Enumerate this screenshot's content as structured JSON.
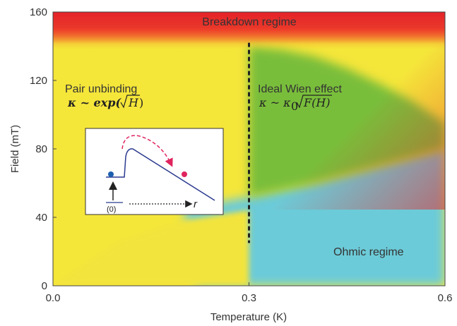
{
  "chart_data": {
    "type": "area",
    "title": "",
    "xlabel": "Temperature (K)",
    "ylabel": "Field (mT)",
    "xlim": [
      0.0,
      0.6
    ],
    "ylim": [
      0,
      160
    ],
    "x_ticks": [
      "0.0",
      "0.3",
      "0.6"
    ],
    "y_ticks": [
      "0",
      "40",
      "80",
      "120",
      "160"
    ],
    "grid": false,
    "regions": [
      {
        "name": "Breakdown regime",
        "color": "#e8262b"
      },
      {
        "name": "Pair unbinding",
        "color": "#f5e63a"
      },
      {
        "name": "Ideal Wien effect",
        "color": "#7bbf3a"
      },
      {
        "name": "Ohmic regime",
        "color": "#6ccbd8"
      }
    ],
    "dashed_line": {
      "x": 0.3,
      "y_range": [
        25,
        142
      ]
    },
    "wien_boundary": {
      "x": [
        0.3,
        0.35,
        0.4,
        0.45,
        0.5,
        0.55,
        0.6
      ],
      "y": [
        140,
        138,
        134,
        127,
        118,
        108,
        95
      ]
    },
    "ohmic_boundary": {
      "x": [
        0.0,
        0.1,
        0.2,
        0.3,
        0.4,
        0.5,
        0.6
      ],
      "y": [
        0,
        30,
        45,
        52,
        60,
        70,
        80
      ]
    },
    "annotations": {
      "breakdown": "Breakdown regime",
      "pair_title": "Pair unbinding",
      "pair_formula_prefix": "κ ~ exp(",
      "pair_formula_arg": "H",
      "pair_formula_suffix": ")",
      "wien_title": "Ideal Wien effect",
      "wien_formula_prefix": "κ ~ κ",
      "wien_formula_sub": "0",
      "wien_formula_arg": "F(H)",
      "ohmic": "Ohmic regime"
    },
    "inset": {
      "level_label": "(0)",
      "axis_label": "r"
    }
  }
}
